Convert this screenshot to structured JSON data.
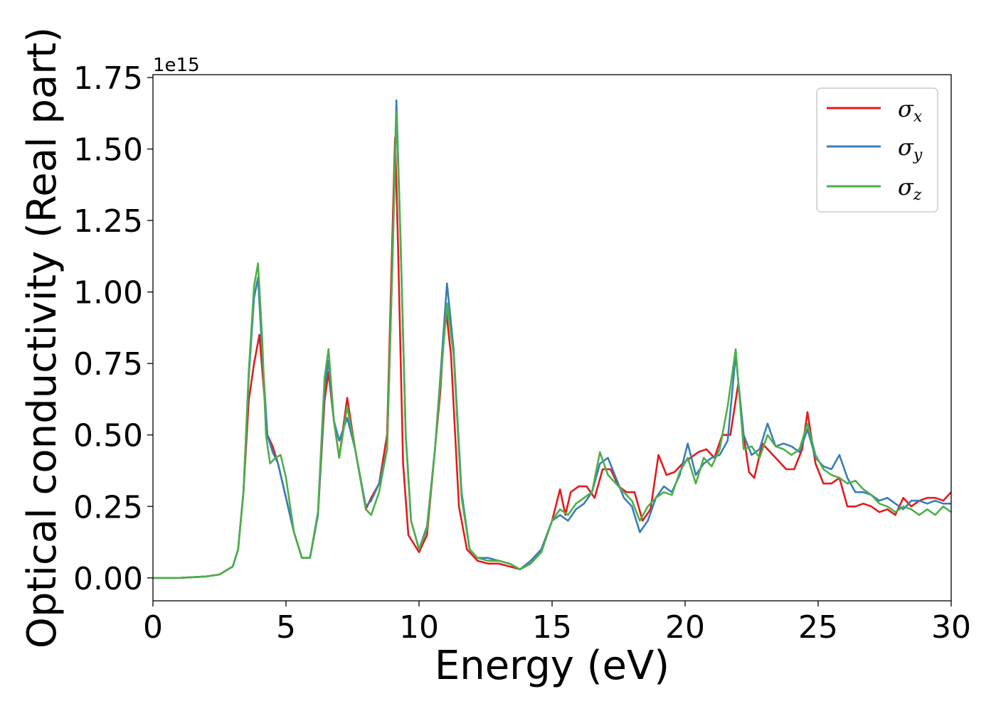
{
  "chart_data": {
    "type": "line",
    "xlabel": "Energy (eV)",
    "ylabel": "Optical conductivity (Real part)",
    "y_offset_label": "1e15",
    "xlim": [
      0,
      30
    ],
    "ylim": [
      -0.08,
      1.76
    ],
    "x_ticks": [
      0,
      5,
      10,
      15,
      20,
      25,
      30
    ],
    "x_tick_labels": [
      "0",
      "5",
      "10",
      "15",
      "20",
      "25",
      "30"
    ],
    "y_ticks": [
      0,
      0.25,
      0.5,
      0.75,
      1.0,
      1.25,
      1.5,
      1.75
    ],
    "y_tick_labels": [
      "0.00",
      "0.25",
      "0.50",
      "0.75",
      "1.00",
      "1.25",
      "1.50",
      "1.75"
    ],
    "grid": false,
    "legend_position": "top-right",
    "series": [
      {
        "name": "σx",
        "legend_symbol": "σ",
        "legend_sub": "x",
        "color": "#e41a1c",
        "x": [
          0,
          1,
          2,
          2.5,
          3,
          3.2,
          3.4,
          3.6,
          3.8,
          4.0,
          4.15,
          4.3,
          4.5,
          4.7,
          5.0,
          5.3,
          5.6,
          5.9,
          6.2,
          6.45,
          6.6,
          6.8,
          7.0,
          7.3,
          7.6,
          8.0,
          8.2,
          8.5,
          8.8,
          9.0,
          9.1,
          9.2,
          9.4,
          9.6,
          10.0,
          10.3,
          10.6,
          10.8,
          11.0,
          11.2,
          11.5,
          11.8,
          12.2,
          12.6,
          13.0,
          13.4,
          13.8,
          14.2,
          14.6,
          15.0,
          15.3,
          15.5,
          15.7,
          16.0,
          16.3,
          16.6,
          16.9,
          17.2,
          17.5,
          17.8,
          18.1,
          18.4,
          18.7,
          19.0,
          19.3,
          19.6,
          19.9,
          20.2,
          20.5,
          20.8,
          21.1,
          21.4,
          21.7,
          22.0,
          22.2,
          22.4,
          22.6,
          22.9,
          23.2,
          23.5,
          23.8,
          24.1,
          24.4,
          24.6,
          24.9,
          25.2,
          25.5,
          25.8,
          26.1,
          26.4,
          26.7,
          27.0,
          27.3,
          27.6,
          27.9,
          28.2,
          28.5,
          28.8,
          29.1,
          29.4,
          29.7,
          30.0
        ],
        "y": [
          0.0,
          0.0,
          0.005,
          0.012,
          0.04,
          0.1,
          0.3,
          0.62,
          0.75,
          0.85,
          0.68,
          0.5,
          0.46,
          0.4,
          0.28,
          0.16,
          0.07,
          0.07,
          0.22,
          0.62,
          0.72,
          0.55,
          0.42,
          0.63,
          0.45,
          0.24,
          0.28,
          0.33,
          0.5,
          1.2,
          1.54,
          1.2,
          0.4,
          0.15,
          0.09,
          0.15,
          0.45,
          0.65,
          0.95,
          0.78,
          0.25,
          0.1,
          0.06,
          0.05,
          0.05,
          0.04,
          0.03,
          0.06,
          0.1,
          0.2,
          0.31,
          0.22,
          0.3,
          0.32,
          0.32,
          0.28,
          0.38,
          0.38,
          0.32,
          0.3,
          0.3,
          0.2,
          0.24,
          0.43,
          0.36,
          0.37,
          0.4,
          0.42,
          0.44,
          0.45,
          0.42,
          0.5,
          0.5,
          0.68,
          0.5,
          0.37,
          0.35,
          0.47,
          0.44,
          0.41,
          0.38,
          0.38,
          0.45,
          0.58,
          0.4,
          0.33,
          0.33,
          0.35,
          0.25,
          0.25,
          0.26,
          0.25,
          0.23,
          0.24,
          0.22,
          0.28,
          0.25,
          0.27,
          0.28,
          0.28,
          0.27,
          0.3
        ]
      },
      {
        "name": "σy",
        "legend_symbol": "σ",
        "legend_sub": "y",
        "color": "#377eb8",
        "x": [
          0,
          1,
          2,
          2.5,
          3,
          3.2,
          3.4,
          3.6,
          3.8,
          3.95,
          4.1,
          4.3,
          4.5,
          4.7,
          5.0,
          5.3,
          5.6,
          5.9,
          6.2,
          6.45,
          6.6,
          6.8,
          7.0,
          7.3,
          7.6,
          8.0,
          8.2,
          8.5,
          8.8,
          9.0,
          9.15,
          9.3,
          9.5,
          9.7,
          10.0,
          10.3,
          10.6,
          10.8,
          11.05,
          11.3,
          11.6,
          11.9,
          12.2,
          12.6,
          13.0,
          13.4,
          13.8,
          14.2,
          14.6,
          15.0,
          15.3,
          15.6,
          15.9,
          16.2,
          16.5,
          16.8,
          17.1,
          17.4,
          17.7,
          18.0,
          18.3,
          18.6,
          18.9,
          19.2,
          19.5,
          19.8,
          20.1,
          20.4,
          20.7,
          21.0,
          21.3,
          21.6,
          21.9,
          22.2,
          22.5,
          22.8,
          23.1,
          23.4,
          23.7,
          24.0,
          24.3,
          24.6,
          24.9,
          25.2,
          25.5,
          25.8,
          26.1,
          26.4,
          26.7,
          27.0,
          27.3,
          27.6,
          27.9,
          28.2,
          28.5,
          28.8,
          29.1,
          29.4,
          29.7,
          30.0
        ],
        "y": [
          0.0,
          0.0,
          0.005,
          0.012,
          0.04,
          0.1,
          0.3,
          0.7,
          0.98,
          1.05,
          0.8,
          0.5,
          0.44,
          0.4,
          0.28,
          0.16,
          0.07,
          0.07,
          0.22,
          0.66,
          0.76,
          0.55,
          0.48,
          0.56,
          0.45,
          0.25,
          0.27,
          0.33,
          0.45,
          1.1,
          1.67,
          1.2,
          0.5,
          0.2,
          0.1,
          0.18,
          0.45,
          0.7,
          1.03,
          0.8,
          0.3,
          0.1,
          0.07,
          0.07,
          0.06,
          0.05,
          0.03,
          0.06,
          0.1,
          0.2,
          0.22,
          0.2,
          0.24,
          0.26,
          0.3,
          0.4,
          0.42,
          0.35,
          0.28,
          0.25,
          0.16,
          0.2,
          0.28,
          0.32,
          0.3,
          0.36,
          0.47,
          0.36,
          0.4,
          0.42,
          0.43,
          0.48,
          0.78,
          0.5,
          0.43,
          0.45,
          0.54,
          0.46,
          0.47,
          0.46,
          0.44,
          0.52,
          0.42,
          0.39,
          0.38,
          0.43,
          0.35,
          0.3,
          0.3,
          0.29,
          0.27,
          0.28,
          0.26,
          0.24,
          0.27,
          0.27,
          0.26,
          0.27,
          0.26,
          0.26
        ]
      },
      {
        "name": "σz",
        "legend_symbol": "σ",
        "legend_sub": "z",
        "color": "#4daf4a",
        "x": [
          0,
          1,
          2,
          2.5,
          3,
          3.2,
          3.4,
          3.6,
          3.8,
          3.95,
          4.1,
          4.25,
          4.4,
          4.6,
          4.8,
          5.0,
          5.3,
          5.6,
          5.9,
          6.2,
          6.45,
          6.6,
          6.8,
          7.0,
          7.3,
          7.6,
          8.0,
          8.2,
          8.5,
          8.8,
          9.0,
          9.15,
          9.3,
          9.5,
          9.7,
          10.0,
          10.3,
          10.6,
          10.8,
          11.05,
          11.3,
          11.6,
          11.9,
          12.2,
          12.6,
          13.0,
          13.4,
          13.8,
          14.2,
          14.6,
          15.0,
          15.3,
          15.6,
          15.9,
          16.2,
          16.5,
          16.8,
          17.1,
          17.4,
          17.7,
          18.0,
          18.3,
          18.6,
          18.9,
          19.2,
          19.5,
          19.8,
          20.1,
          20.4,
          20.7,
          21.0,
          21.3,
          21.6,
          21.9,
          22.2,
          22.5,
          22.8,
          23.1,
          23.4,
          23.7,
          24.0,
          24.3,
          24.6,
          24.9,
          25.2,
          25.5,
          25.8,
          26.1,
          26.4,
          26.7,
          27.0,
          27.3,
          27.6,
          27.9,
          28.2,
          28.5,
          28.8,
          29.1,
          29.4,
          29.7,
          30.0
        ],
        "y": [
          0.0,
          0.0,
          0.005,
          0.012,
          0.04,
          0.1,
          0.3,
          0.72,
          1.02,
          1.1,
          0.85,
          0.5,
          0.4,
          0.42,
          0.43,
          0.35,
          0.16,
          0.07,
          0.07,
          0.23,
          0.7,
          0.8,
          0.55,
          0.42,
          0.6,
          0.45,
          0.24,
          0.22,
          0.3,
          0.45,
          1.1,
          1.63,
          1.2,
          0.5,
          0.2,
          0.1,
          0.17,
          0.45,
          0.68,
          0.96,
          0.78,
          0.28,
          0.1,
          0.07,
          0.06,
          0.06,
          0.05,
          0.03,
          0.05,
          0.09,
          0.2,
          0.24,
          0.22,
          0.26,
          0.28,
          0.3,
          0.44,
          0.36,
          0.33,
          0.3,
          0.27,
          0.2,
          0.25,
          0.28,
          0.3,
          0.29,
          0.37,
          0.42,
          0.33,
          0.42,
          0.39,
          0.45,
          0.6,
          0.8,
          0.45,
          0.46,
          0.42,
          0.5,
          0.46,
          0.45,
          0.43,
          0.45,
          0.54,
          0.43,
          0.38,
          0.36,
          0.35,
          0.33,
          0.34,
          0.31,
          0.29,
          0.26,
          0.25,
          0.23,
          0.25,
          0.24,
          0.22,
          0.24,
          0.22,
          0.25,
          0.23
        ]
      }
    ]
  }
}
